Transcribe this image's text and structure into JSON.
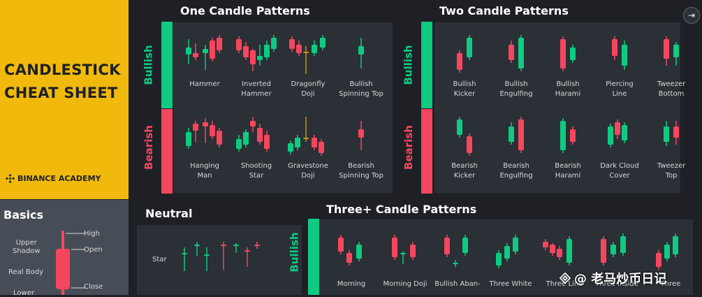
{
  "sheet": {
    "title_line1": "CANDLESTICK",
    "title_line2": "CHEAT SHEET",
    "brand": "BINANCE ACADEMY",
    "brand_icon": "binance-diamond-icon"
  },
  "colors": {
    "bullish": "#0ecb81",
    "bearish": "#f6465d",
    "neutral": "#0ecb81",
    "brand": "#f0b90b",
    "background": "#1e2026"
  },
  "basics": {
    "title": "Basics",
    "labels": {
      "upper_shadow": "Upper\nShadow",
      "real_body": "Real Body",
      "high": "High",
      "open": "Open",
      "close": "Close",
      "lower_cut": "Lower"
    }
  },
  "one_candle": {
    "title": "One Candle Patterns",
    "bullish_label": "Bullish",
    "bearish_label": "Bearish",
    "bullish": [
      {
        "name": "Hammer",
        "key": "hammer"
      },
      {
        "name": "Inverted\nHammer",
        "key": "inverted-hammer"
      },
      {
        "name": "Dragonfly\nDoji",
        "key": "dragonfly-doji"
      },
      {
        "name": "Bullish\nSpinning Top",
        "key": "bullish-spinning-top"
      }
    ],
    "bearish": [
      {
        "name": "Hanging\nMan",
        "key": "hanging-man"
      },
      {
        "name": "Shooting\nStar",
        "key": "shooting-star"
      },
      {
        "name": "Gravestone\nDoji",
        "key": "gravestone-doji"
      },
      {
        "name": "Bearish\nSpinning Top",
        "key": "bearish-spinning-top"
      }
    ]
  },
  "two_candle": {
    "title": "Two Candle Patterns",
    "bullish_label": "Bullish",
    "bearish_label": "Bearish",
    "bullish": [
      {
        "name": "Bullish\nKicker",
        "key": "bullish-kicker"
      },
      {
        "name": "Bullish\nEngulfing",
        "key": "bullish-engulfing"
      },
      {
        "name": "Bullish\nHarami",
        "key": "bullish-harami"
      },
      {
        "name": "Piercing\nLine",
        "key": "piercing-line"
      },
      {
        "name": "Tweezer\nBottom",
        "key": "tweezer-bottom"
      }
    ],
    "bearish": [
      {
        "name": "Bearish\nKicker",
        "key": "bearish-kicker"
      },
      {
        "name": "Bearish\nEngulfing",
        "key": "bearish-engulfing"
      },
      {
        "name": "Bearish\nHarami",
        "key": "bearish-harami"
      },
      {
        "name": "Dark Cloud\nCover",
        "key": "dark-cloud-cover"
      },
      {
        "name": "Tweezer\nTop",
        "key": "tweezer-top"
      }
    ]
  },
  "neutral": {
    "title": "Neutral",
    "star_label": "Star"
  },
  "three_candle": {
    "title": "Three+ Candle Patterns",
    "bullish_label": "Bullish",
    "bullish": [
      {
        "name": "Morning",
        "key": "morning-star"
      },
      {
        "name": "Morning Doji",
        "key": "morning-doji"
      },
      {
        "name": "Bullish Aban-",
        "key": "bullish-abandoned"
      },
      {
        "name": "Three White",
        "key": "three-white"
      },
      {
        "name": "Three Line",
        "key": "three-line"
      },
      {
        "name": "Three Inside",
        "key": "three-inside"
      },
      {
        "name": "Three",
        "key": "three"
      }
    ]
  },
  "watermark": {
    "text": "@ 老马炒币日记",
    "icon": "diamond-logo-icon"
  },
  "corner_icon": "exit-icon"
}
